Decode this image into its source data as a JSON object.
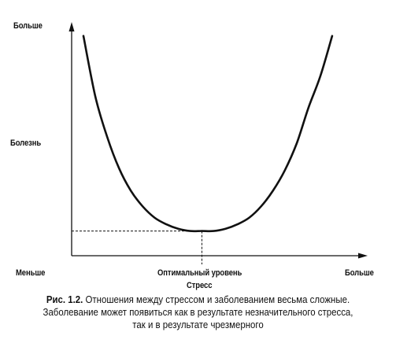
{
  "chart_data": {
    "type": "line",
    "x_axis": {
      "label": "Стресс",
      "low_label": "Меньше",
      "mid_label": "Оптимальный уровень",
      "high_label": "Больше"
    },
    "y_axis": {
      "label": "Болезнь",
      "high_label": "Больше"
    },
    "range": {
      "x": [
        0,
        1
      ],
      "y": [
        0,
        1
      ]
    },
    "optimum": {
      "x": 0.44,
      "y": 0.11
    },
    "series": [
      {
        "x": [
          0.04,
          0.08,
          0.12,
          0.16,
          0.2,
          0.24,
          0.28,
          0.32,
          0.36,
          0.4,
          0.44,
          0.48,
          0.52,
          0.56,
          0.6,
          0.64,
          0.68,
          0.72,
          0.76,
          0.8,
          0.84,
          0.88
        ],
        "y": [
          0.98,
          0.71,
          0.53,
          0.39,
          0.29,
          0.22,
          0.17,
          0.14,
          0.12,
          0.11,
          0.11,
          0.11,
          0.12,
          0.14,
          0.17,
          0.22,
          0.29,
          0.38,
          0.5,
          0.66,
          0.8,
          0.98
        ]
      }
    ],
    "grid": false,
    "legend": "none"
  },
  "caption": {
    "label": "Рис. 1.2.",
    "line1": " Отношения между стрессом и заболеванием весьма сложные.",
    "line2": "Заболевание может появиться как в результате незначительного стресса,",
    "line3": "так и в результате чрезмерного"
  },
  "colors": {
    "ink": "#111111"
  }
}
